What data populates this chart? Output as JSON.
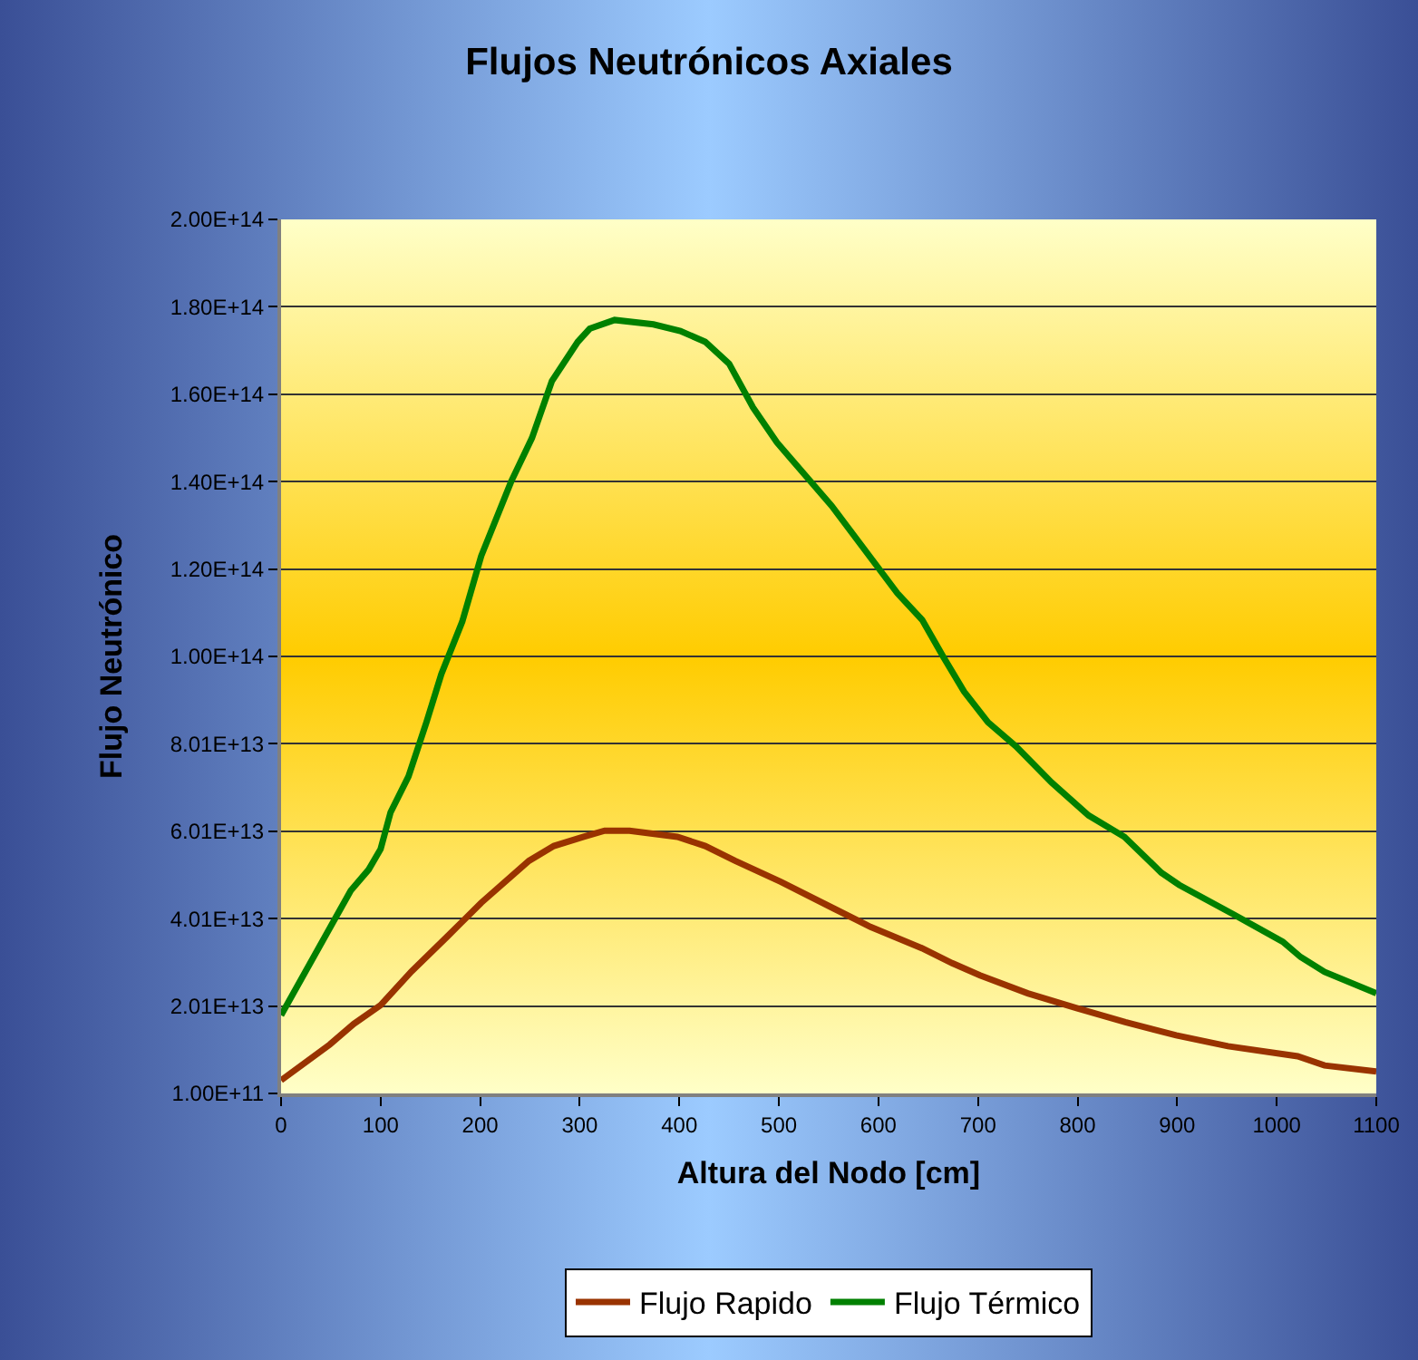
{
  "chart_data": {
    "type": "line",
    "title": "Flujos Neutrónicos Axiales",
    "xlabel": "Altura del Nodo [cm]",
    "ylabel": "Flujo Neutrónico",
    "xlim": [
      0,
      1100
    ],
    "xticks": [
      0,
      100,
      200,
      300,
      400,
      500,
      600,
      700,
      800,
      900,
      1000,
      1100
    ],
    "ylim": [
      100000000000.0,
      200000000000000.0
    ],
    "yticks": [
      {
        "value": 100000000000.0,
        "label": "1.00E+11"
      },
      {
        "value": 20090000000000.0,
        "label": "2.01E+13"
      },
      {
        "value": 40080000000000.0,
        "label": "4.01E+13"
      },
      {
        "value": 60070000000000.0,
        "label": "6.01E+13"
      },
      {
        "value": 80060000000000.0,
        "label": "8.01E+13"
      },
      {
        "value": 100050000000000.0,
        "label": "1.00E+14"
      },
      {
        "value": 120040000000000.0,
        "label": "1.20E+14"
      },
      {
        "value": 140030000000000.0,
        "label": "1.40E+14"
      },
      {
        "value": 160020000000000.0,
        "label": "1.60E+14"
      },
      {
        "value": 180010000000000.0,
        "label": "1.80E+14"
      },
      {
        "value": 200000000000000.0,
        "label": "2.00E+14"
      }
    ],
    "grid": "y",
    "legend": "bottom",
    "marker": "none",
    "line_style": "solid",
    "series": [
      {
        "name": "Flujo Rapido",
        "color": "#993300",
        "x": [
          0,
          49,
          73,
          100,
          131,
          167,
          201,
          249,
          274,
          304,
          325,
          350,
          398,
          426,
          456,
          502,
          556,
          592,
          644,
          674,
          702,
          750,
          799,
          848,
          899,
          951,
          1021,
          1048,
          1100
        ],
        "values": [
          3100000000000.0,
          11300000000000.0,
          16000000000000.0,
          20300000000000.0,
          28000000000000.0,
          36000000000000.0,
          43700000000000.0,
          53300000000000.0,
          56700000000000.0,
          58800000000000.0,
          60200000000000.0,
          60200000000000.0,
          58800000000000.0,
          56700000000000.0,
          53300000000000.0,
          48500000000000.0,
          42300000000000.0,
          38200000000000.0,
          33300000000000.0,
          29900000000000.0,
          27100000000000.0,
          23000000000000.0,
          19600000000000.0,
          16400000000000.0,
          13400000000000.0,
          10900000000000.0,
          8600000000000.0,
          6500000000000.0,
          5100000000000.0
        ]
      },
      {
        "name": "Flujo Térmico",
        "color": "#008000",
        "x": [
          0,
          70,
          88,
          100,
          110,
          128,
          146,
          161,
          182,
          201,
          231,
          252,
          272,
          298,
          310,
          335,
          374,
          401,
          426,
          450,
          474,
          498,
          532,
          553,
          619,
          644,
          665,
          686,
          710,
          738,
          774,
          811,
          847,
          884,
          902,
          957,
          1006,
          1024,
          1048,
          1100
        ],
        "values": [
          18000000000000.0,
          46500000000000.0,
          51300000000000.0,
          56000000000000.0,
          64400000000000.0,
          72600000000000.0,
          85000000000000.0,
          96000000000000.0,
          108000000000000.0,
          123000000000000.0,
          140000000000000.0,
          150000000000000.0,
          163000000000000.0,
          172000000000000.0,
          175000000000000.0,
          177000000000000.0,
          176000000000000.0,
          174500000000000.0,
          172000000000000.0,
          167000000000000.0,
          157000000000000.0,
          149000000000000.0,
          140000000000000.0,
          134500000000000.0,
          114500000000000.0,
          108400000000000.0,
          100000000000000.0,
          92000000000000.0,
          85000000000000.0,
          79500000000000.0,
          71200000000000.0,
          63700000000000.0,
          58800000000000.0,
          50600000000000.0,
          47800000000000.0,
          41000000000000.0,
          34800000000000.0,
          31300000000000.0,
          27900000000000.0,
          23000000000000.0
        ]
      }
    ]
  }
}
